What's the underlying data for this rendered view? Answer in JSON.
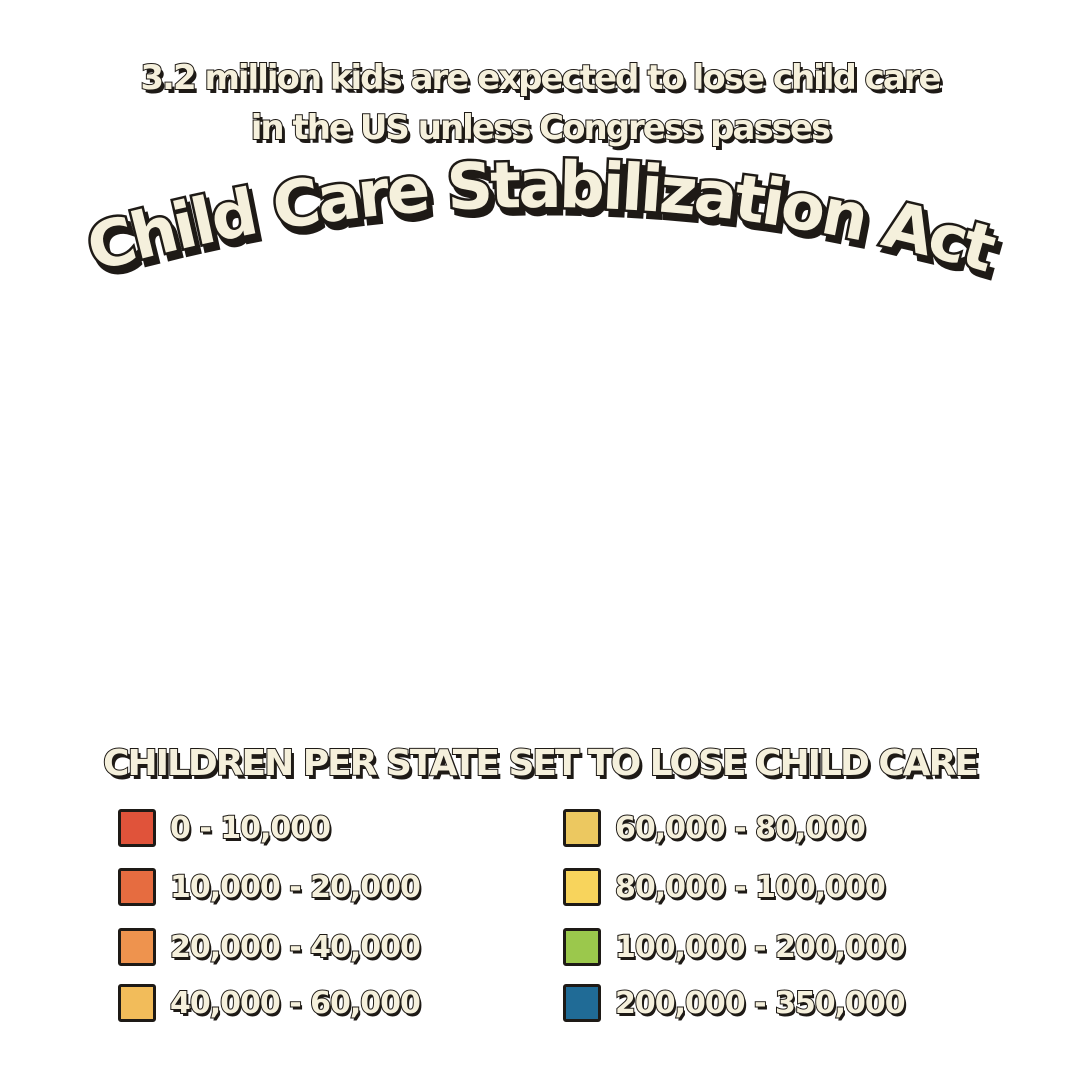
{
  "headline": {
    "line1": "3.2 million kids are expected to lose child care",
    "line2": "in the US unless Congress passes",
    "title": "Child Care Stabilization Act"
  },
  "legend": {
    "heading": "CHILDREN PER STATE SET TO LOSE CHILD CARE",
    "items": [
      {
        "label": "0 - 10,000",
        "color": "#e0533a"
      },
      {
        "label": "10,000 - 20,000",
        "color": "#e66c40"
      },
      {
        "label": "20,000 - 40,000",
        "color": "#ee934e"
      },
      {
        "label": "40,000 - 60,000",
        "color": "#f2bc5a"
      },
      {
        "label": "60,000 - 80,000",
        "color": "#ecc860"
      },
      {
        "label": "80,000 - 100,000",
        "color": "#f8d45c"
      },
      {
        "label": "100,000 - 200,000",
        "color": "#9bc84c"
      },
      {
        "label": "200,000 - 350,000",
        "color": "#206b96"
      }
    ]
  }
}
